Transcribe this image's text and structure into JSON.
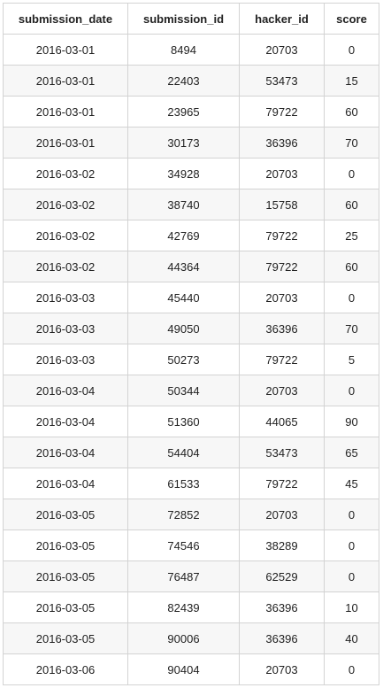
{
  "table": {
    "headers": [
      "submission_date",
      "submission_id",
      "hacker_id",
      "score"
    ],
    "rows": [
      [
        "2016-03-01",
        "8494",
        "20703",
        "0"
      ],
      [
        "2016-03-01",
        "22403",
        "53473",
        "15"
      ],
      [
        "2016-03-01",
        "23965",
        "79722",
        "60"
      ],
      [
        "2016-03-01",
        "30173",
        "36396",
        "70"
      ],
      [
        "2016-03-02",
        "34928",
        "20703",
        "0"
      ],
      [
        "2016-03-02",
        "38740",
        "15758",
        "60"
      ],
      [
        "2016-03-02",
        "42769",
        "79722",
        "25"
      ],
      [
        "2016-03-02",
        "44364",
        "79722",
        "60"
      ],
      [
        "2016-03-03",
        "45440",
        "20703",
        "0"
      ],
      [
        "2016-03-03",
        "49050",
        "36396",
        "70"
      ],
      [
        "2016-03-03",
        "50273",
        "79722",
        "5"
      ],
      [
        "2016-03-04",
        "50344",
        "20703",
        "0"
      ],
      [
        "2016-03-04",
        "51360",
        "44065",
        "90"
      ],
      [
        "2016-03-04",
        "54404",
        "53473",
        "65"
      ],
      [
        "2016-03-04",
        "61533",
        "79722",
        "45"
      ],
      [
        "2016-03-05",
        "72852",
        "20703",
        "0"
      ],
      [
        "2016-03-05",
        "74546",
        "38289",
        "0"
      ],
      [
        "2016-03-05",
        "76487",
        "62529",
        "0"
      ],
      [
        "2016-03-05",
        "82439",
        "36396",
        "10"
      ],
      [
        "2016-03-05",
        "90006",
        "36396",
        "40"
      ],
      [
        "2016-03-06",
        "90404",
        "20703",
        "0"
      ]
    ]
  }
}
